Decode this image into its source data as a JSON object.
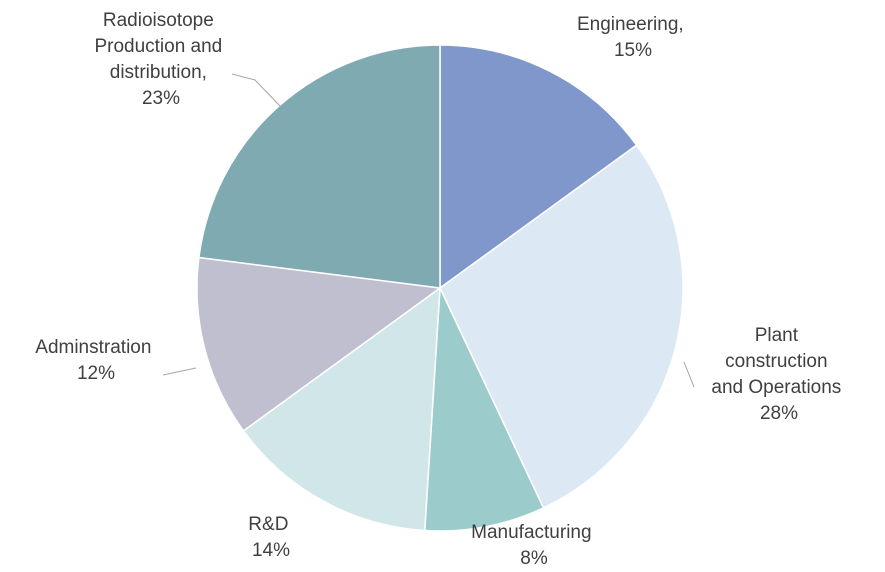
{
  "chart_data": {
    "type": "pie",
    "title": "",
    "slices": [
      {
        "lines": [
          "Engineering,",
          "15%"
        ],
        "value": 15,
        "color": "#8097cb"
      },
      {
        "lines": [
          "Plant",
          "construction",
          "and Operations",
          "28%"
        ],
        "value": 28,
        "color": "#dce8f3"
      },
      {
        "lines": [
          "Manufacturing",
          "8%"
        ],
        "value": 8,
        "color": "#9ccbcb"
      },
      {
        "lines": [
          "R&D",
          "14%"
        ],
        "value": 14,
        "color": "#d0e6e8"
      },
      {
        "lines": [
          "Adminstration",
          "12%"
        ],
        "value": 12,
        "color": "#c0bfcf"
      },
      {
        "lines": [
          "Radioisotope",
          "Production and",
          "distribution,",
          "23%"
        ],
        "value": 23,
        "color": "#7faab2"
      }
    ]
  }
}
